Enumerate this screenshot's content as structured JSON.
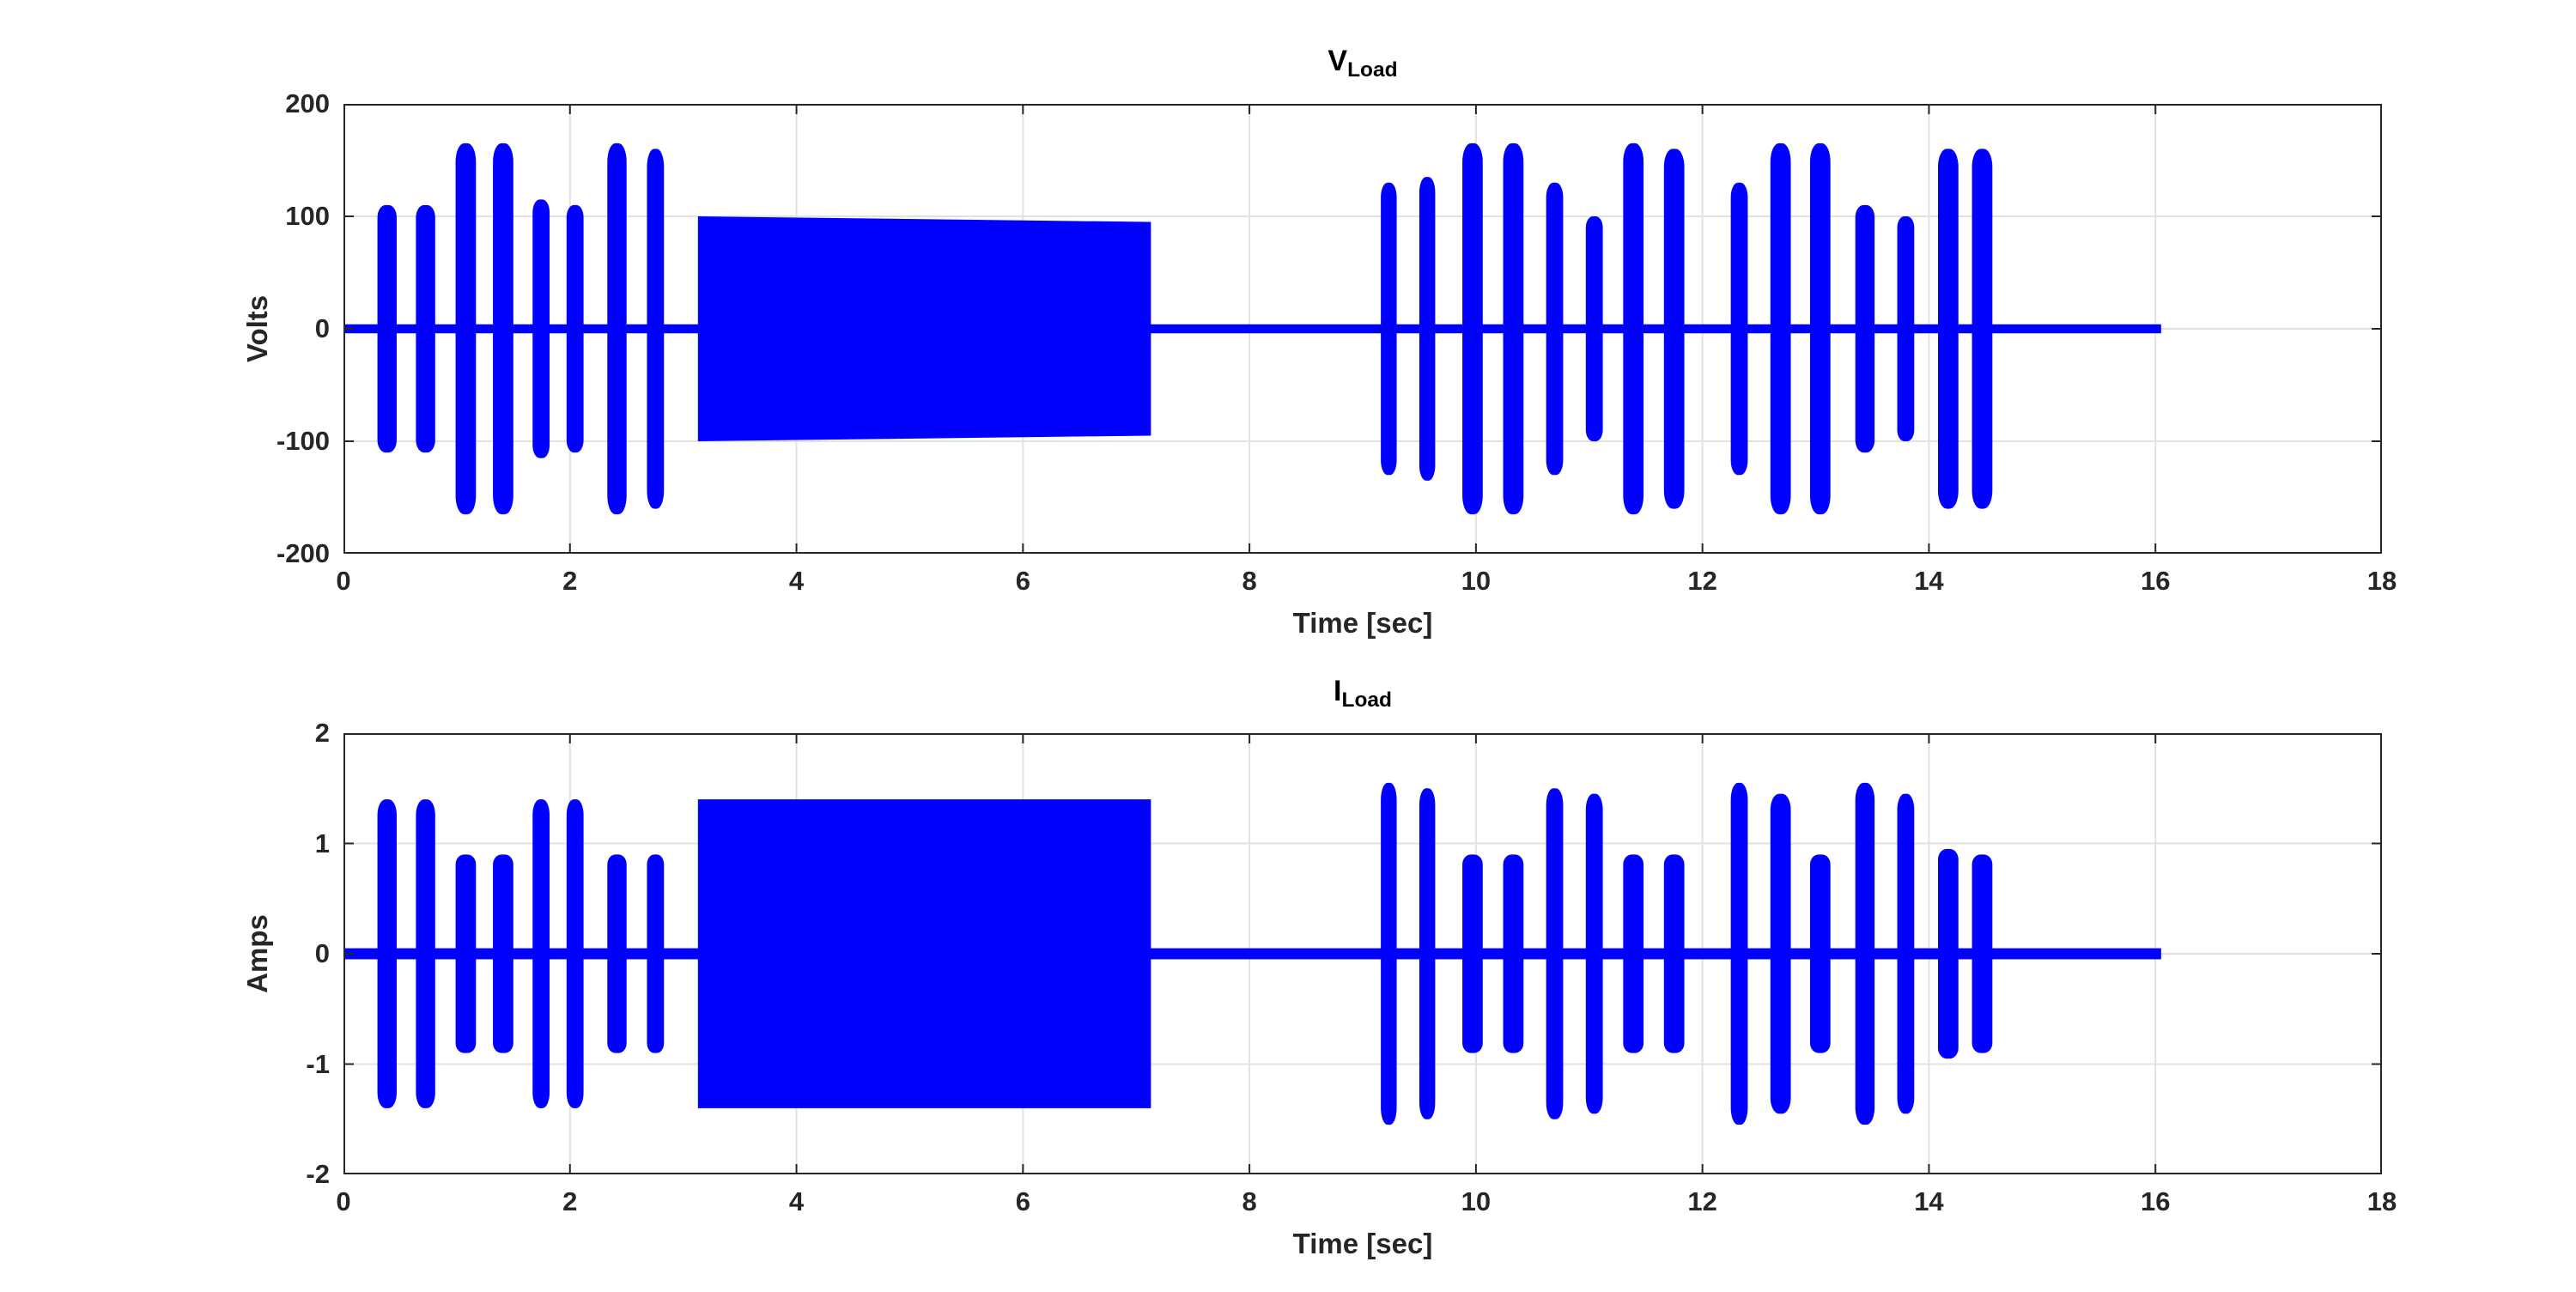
{
  "figure": {
    "background": "#ffffff",
    "line_color": "#0000ff",
    "grid_color": "#e2e2e2",
    "axis_color": "#262626",
    "title_color": "#000000"
  },
  "chart_data": [
    {
      "type": "area",
      "series_name": "V_Load",
      "title_main": "V",
      "title_sub": "Load",
      "xlabel": "Time [sec]",
      "ylabel": "Volts",
      "xlim": [
        0,
        18
      ],
      "ylim": [
        -200,
        200
      ],
      "xticks": [
        0,
        2,
        4,
        6,
        8,
        10,
        12,
        14,
        16,
        18
      ],
      "yticks": [
        -200,
        -100,
        0,
        100,
        200
      ],
      "grid": true,
      "legend": null,
      "baseline": {
        "t0": 0,
        "t1": 16.05,
        "amp": 4
      },
      "segments": [
        [
          0.3,
          0.47,
          110,
          110,
          "burst"
        ],
        [
          0.64,
          0.81,
          110,
          110,
          "burst"
        ],
        [
          0.99,
          1.17,
          165,
          165,
          "burst"
        ],
        [
          1.32,
          1.5,
          165,
          165,
          "burst"
        ],
        [
          1.67,
          1.82,
          115,
          115,
          "burst"
        ],
        [
          1.97,
          2.12,
          110,
          110,
          "burst"
        ],
        [
          2.33,
          2.5,
          165,
          165,
          "burst"
        ],
        [
          2.68,
          2.83,
          160,
          160,
          "burst"
        ],
        [
          3.13,
          7.13,
          100,
          95,
          "block"
        ],
        [
          9.16,
          9.3,
          130,
          130,
          "burst"
        ],
        [
          9.5,
          9.64,
          135,
          135,
          "burst"
        ],
        [
          9.88,
          10.06,
          165,
          165,
          "burst"
        ],
        [
          10.24,
          10.42,
          165,
          165,
          "burst"
        ],
        [
          10.62,
          10.77,
          130,
          130,
          "burst"
        ],
        [
          10.97,
          11.12,
          100,
          100,
          "burst"
        ],
        [
          11.3,
          11.48,
          165,
          165,
          "burst"
        ],
        [
          11.66,
          11.84,
          160,
          160,
          "burst"
        ],
        [
          12.25,
          12.4,
          130,
          130,
          "burst"
        ],
        [
          12.6,
          12.78,
          165,
          165,
          "burst"
        ],
        [
          12.95,
          13.13,
          165,
          165,
          "burst"
        ],
        [
          13.35,
          13.52,
          110,
          110,
          "burst"
        ],
        [
          13.72,
          13.87,
          100,
          100,
          "burst"
        ],
        [
          14.08,
          14.26,
          160,
          160,
          "burst"
        ],
        [
          14.38,
          14.56,
          160,
          160,
          "burst"
        ]
      ]
    },
    {
      "type": "area",
      "series_name": "I_Load",
      "title_main": "I",
      "title_sub": "Load",
      "xlabel": "Time [sec]",
      "ylabel": "Amps",
      "xlim": [
        0,
        18
      ],
      "ylim": [
        -2,
        2
      ],
      "xticks": [
        0,
        2,
        4,
        6,
        8,
        10,
        12,
        14,
        16,
        18
      ],
      "yticks": [
        -2,
        -1,
        0,
        1,
        2
      ],
      "grid": true,
      "legend": null,
      "baseline": {
        "t0": 0,
        "t1": 16.05,
        "amp": 0.05
      },
      "segments": [
        [
          0.3,
          0.47,
          1.4,
          1.4,
          "burst"
        ],
        [
          0.64,
          0.81,
          1.4,
          1.4,
          "burst"
        ],
        [
          0.99,
          1.17,
          0.9,
          0.9,
          "burst"
        ],
        [
          1.32,
          1.5,
          0.9,
          0.9,
          "burst"
        ],
        [
          1.67,
          1.82,
          1.4,
          1.4,
          "burst"
        ],
        [
          1.97,
          2.12,
          1.4,
          1.4,
          "burst"
        ],
        [
          2.33,
          2.5,
          0.9,
          0.9,
          "burst"
        ],
        [
          2.68,
          2.83,
          0.9,
          0.9,
          "burst"
        ],
        [
          3.13,
          7.13,
          1.4,
          1.4,
          "block"
        ],
        [
          9.16,
          9.3,
          1.55,
          1.55,
          "burst"
        ],
        [
          9.5,
          9.64,
          1.5,
          1.5,
          "burst"
        ],
        [
          9.88,
          10.06,
          0.9,
          0.9,
          "burst"
        ],
        [
          10.24,
          10.42,
          0.9,
          0.9,
          "burst"
        ],
        [
          10.62,
          10.77,
          1.5,
          1.5,
          "burst"
        ],
        [
          10.97,
          11.12,
          1.45,
          1.45,
          "burst"
        ],
        [
          11.3,
          11.48,
          0.9,
          0.9,
          "burst"
        ],
        [
          11.66,
          11.84,
          0.9,
          0.9,
          "burst"
        ],
        [
          12.25,
          12.4,
          1.55,
          1.55,
          "burst"
        ],
        [
          12.6,
          12.78,
          1.45,
          1.45,
          "burst"
        ],
        [
          12.95,
          13.13,
          0.9,
          0.9,
          "burst"
        ],
        [
          13.35,
          13.52,
          1.55,
          1.55,
          "burst"
        ],
        [
          13.72,
          13.87,
          1.45,
          1.45,
          "burst"
        ],
        [
          14.08,
          14.26,
          0.95,
          0.95,
          "burst"
        ],
        [
          14.38,
          14.56,
          0.9,
          0.9,
          "burst"
        ]
      ]
    }
  ]
}
